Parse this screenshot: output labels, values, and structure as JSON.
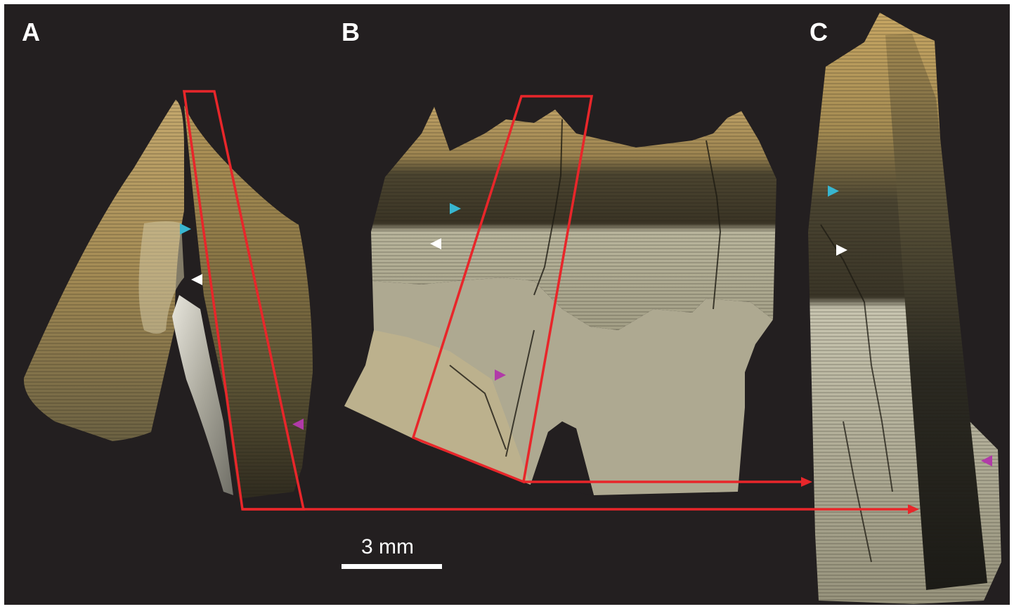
{
  "panels": {
    "a": {
      "label": "A"
    },
    "b": {
      "label": "B"
    },
    "c": {
      "label": "C"
    }
  },
  "scale_bar": {
    "label": "3 mm"
  },
  "colors": {
    "background": "#231f20",
    "outline": "#e8262a",
    "arrow_cyan": "#38b6d0",
    "arrow_white": "#ffffff",
    "arrow_magenta": "#b13aa8",
    "enamel_light": "#c9a869",
    "enamel_dark": "#3f3a26",
    "dentine": "#b7b29a"
  },
  "arrowheads": [
    "cyan-arrowhead",
    "white-arrowhead",
    "magenta-arrowhead"
  ]
}
